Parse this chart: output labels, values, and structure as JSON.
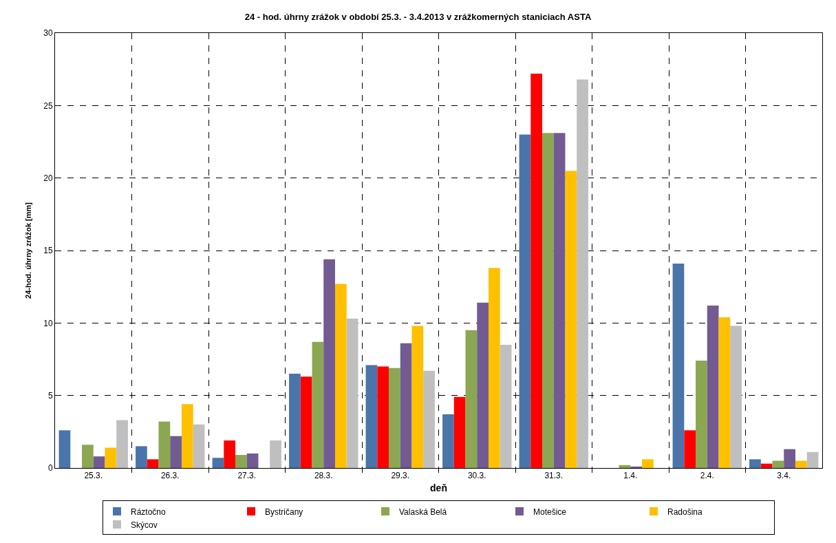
{
  "chart_data": {
    "type": "bar",
    "title": "24 - hod. úhrny zrážok v období 25.3. - 3.4.2013 v zrážkomerných staniciach ASTA",
    "xlabel": "deň",
    "ylabel": "24-hod. úhrny zrážok [mm]",
    "categories": [
      "25.3.",
      "26.3.",
      "27.3.",
      "28.3.",
      "29.3.",
      "30.3.",
      "31.3.",
      "1.4.",
      "2.4.",
      "3.4."
    ],
    "series": [
      {
        "name": "Ráztočno",
        "color": "#4a74aa",
        "values": [
          2.6,
          1.5,
          0.7,
          6.5,
          7.1,
          3.7,
          23.0,
          0,
          14.1,
          0.6
        ]
      },
      {
        "name": "Bystričany",
        "color": "#ff0000",
        "values": [
          0,
          0.6,
          1.9,
          6.3,
          7.0,
          4.9,
          27.2,
          0,
          2.6,
          0.3
        ]
      },
      {
        "name": "Valaská Belá",
        "color": "#8ba752",
        "values": [
          1.6,
          3.2,
          0.9,
          8.7,
          6.9,
          9.5,
          23.1,
          0.2,
          7.4,
          0.5
        ]
      },
      {
        "name": "Motešice",
        "color": "#725b92",
        "values": [
          0.8,
          2.2,
          1.0,
          14.4,
          8.6,
          11.4,
          23.1,
          0.1,
          11.2,
          1.3
        ]
      },
      {
        "name": "Radošina",
        "color": "#ffc000",
        "values": [
          1.4,
          4.4,
          0,
          12.7,
          9.8,
          13.8,
          20.5,
          0.6,
          10.4,
          0.5
        ]
      },
      {
        "name": "Skýcov",
        "color": "#bfbfbf",
        "values": [
          3.3,
          3.0,
          1.9,
          10.3,
          6.7,
          8.5,
          26.8,
          0,
          9.8,
          1.1
        ]
      }
    ],
    "ylim": [
      0,
      30
    ],
    "yticks": [
      0,
      5,
      10,
      15,
      20,
      25,
      30
    ],
    "grid": true,
    "legend": "bottom"
  }
}
